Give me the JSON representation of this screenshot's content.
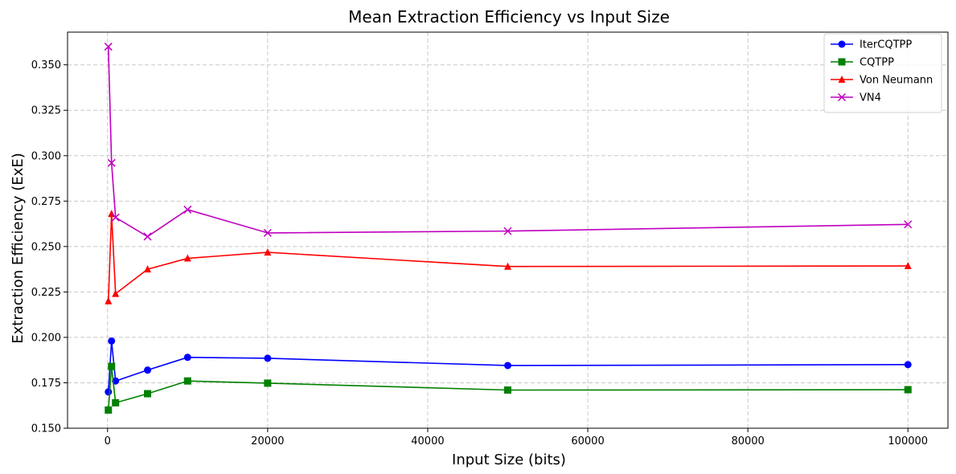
{
  "chart_data": {
    "type": "line",
    "title": "Mean Extraction Efficiency vs Input Size",
    "xlabel": "Input Size (bits)",
    "ylabel": "Extraction Efficiency (ExE)",
    "x": [
      100,
      500,
      1000,
      5000,
      10000,
      20000,
      50000,
      100000
    ],
    "xlim": [
      -5000,
      105000
    ],
    "ylim": [
      0.15,
      0.368
    ],
    "xticks": [
      0,
      20000,
      40000,
      60000,
      80000,
      100000
    ],
    "xtick_labels": [
      "0",
      "20000",
      "40000",
      "60000",
      "80000",
      "100000"
    ],
    "yticks": [
      0.15,
      0.175,
      0.2,
      0.225,
      0.25,
      0.275,
      0.3,
      0.325,
      0.35
    ],
    "ytick_labels": [
      "0.150",
      "0.175",
      "0.200",
      "0.225",
      "0.250",
      "0.275",
      "0.300",
      "0.325",
      "0.350"
    ],
    "grid": true,
    "legend_position": "top-right",
    "series": [
      {
        "name": "IterCQTPP",
        "color": "#0000ff",
        "marker": "circle",
        "values": [
          0.17,
          0.198,
          0.176,
          0.182,
          0.189,
          0.1885,
          0.1845,
          0.185
        ]
      },
      {
        "name": "CQTPP",
        "color": "#008000",
        "marker": "square",
        "values": [
          0.16,
          0.184,
          0.164,
          0.169,
          0.176,
          0.1748,
          0.171,
          0.1712
        ]
      },
      {
        "name": "Von Neumann",
        "color": "#ff0000",
        "marker": "triangle",
        "values": [
          0.22,
          0.268,
          0.224,
          0.2375,
          0.2435,
          0.2468,
          0.239,
          0.2393
        ]
      },
      {
        "name": "VN4",
        "color": "#bf00bf",
        "marker": "x",
        "values": [
          0.36,
          0.296,
          0.266,
          0.2555,
          0.2703,
          0.2575,
          0.2585,
          0.2622
        ]
      }
    ]
  }
}
